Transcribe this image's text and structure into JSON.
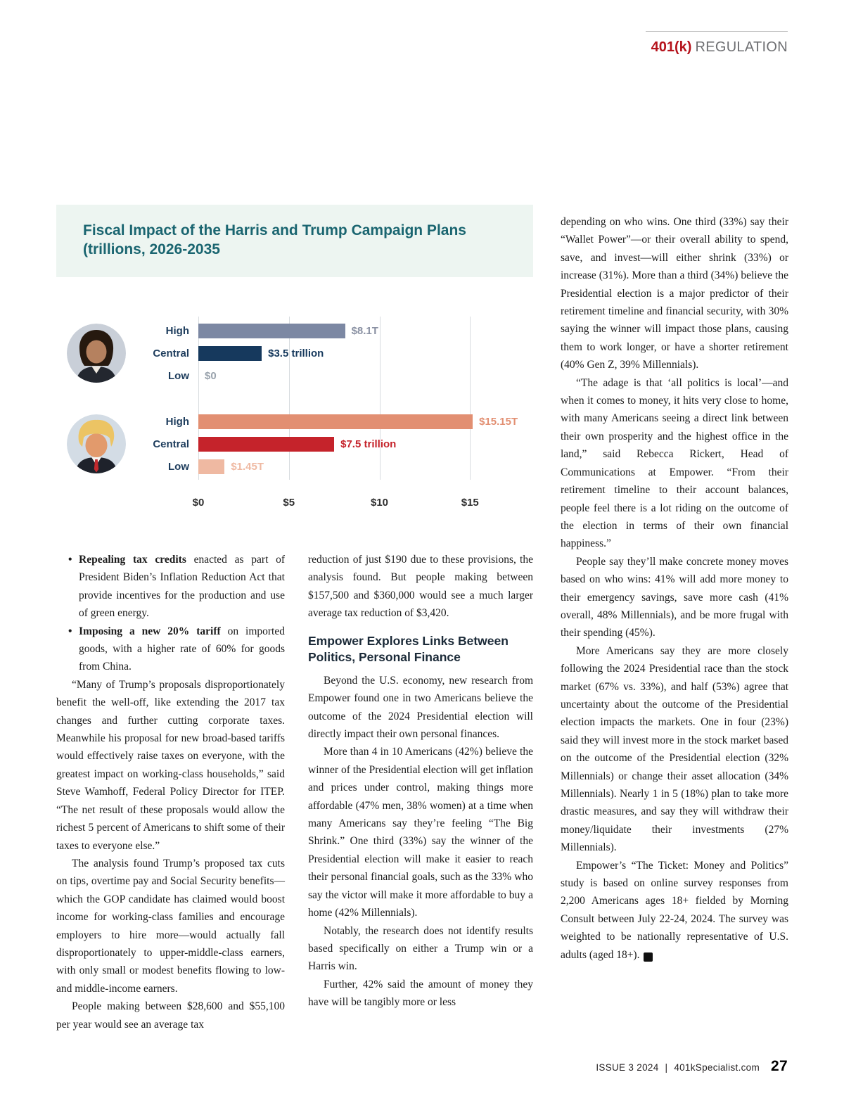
{
  "header": {
    "brand_bold": "401(k)",
    "brand_light": "REGULATION"
  },
  "chart": {
    "title_line1": "Fiscal Impact of the Harris and Trump Campaign Plans",
    "title_line2": "(trillions, 2026-2035"
  },
  "chart_data": {
    "type": "bar",
    "orientation": "horizontal",
    "title": "Fiscal Impact of the Harris and Trump Campaign Plans (trillions, 2026-2035",
    "unit": "trillions of US dollars",
    "xlim": [
      0,
      16
    ],
    "grid": true,
    "x_ticks": [
      {
        "value": 0,
        "label": "$0"
      },
      {
        "value": 5,
        "label": "$5"
      },
      {
        "value": 10,
        "label": "$10"
      },
      {
        "value": 15,
        "label": "$15"
      }
    ],
    "groups": [
      {
        "name": "Harris",
        "rows": [
          {
            "category": "High",
            "value": 8.1,
            "label": "$8.1T",
            "bar_color": "#7c88a3",
            "label_color": "#8a91a3"
          },
          {
            "category": "Central",
            "value": 3.5,
            "label": "$3.5 trillion",
            "bar_color": "#16395d",
            "label_color": "#16395d"
          },
          {
            "category": "Low",
            "value": 0,
            "label": "$0",
            "bar_color": "#9aa3ad",
            "label_color": "#9aa3ad"
          }
        ]
      },
      {
        "name": "Trump",
        "rows": [
          {
            "category": "High",
            "value": 15.15,
            "label": "$15.15T",
            "bar_color": "#e28f72",
            "label_color": "#e28f72"
          },
          {
            "category": "Central",
            "value": 7.5,
            "label": "$7.5 trillion",
            "bar_color": "#c5232b",
            "label_color": "#c5232b"
          },
          {
            "category": "Low",
            "value": 1.45,
            "label": "$1.45T",
            "bar_color": "#efb9a2",
            "label_color": "#efb9a2"
          }
        ]
      }
    ]
  },
  "columns": {
    "col1": {
      "bullets": [
        {
          "lead": "Repealing tax credits",
          "text": " enacted as part of President Biden’s Inflation Reduction Act that provide incentives for the production and use of green energy."
        },
        {
          "lead": "Imposing a new 20% tariff",
          "text": " on imported goods, with a higher rate of 60% for goods from China."
        }
      ],
      "paragraphs": [
        "“Many of Trump’s proposals disproportionately benefit the well-off, like extending the 2017 tax changes and further cutting corporate taxes. Meanwhile his proposal for new broad-based tariffs would effectively raise taxes on everyone, with the greatest impact on working-class households,” said Steve Wamhoff, Federal Policy Director for ITEP. “The net result of these proposals would allow the richest 5 percent of Americans to shift some of their taxes to everyone else.”",
        "The analysis found Trump’s proposed tax cuts on tips, overtime pay and Social Security benefits—which the GOP candidate has claimed would boost income for working-class families and encourage employers to hire more—would actually fall disproportionately to upper-middle-class earners, with only small or modest benefits flowing to low- and middle-income earners.",
        "People making between $28,600 and $55,100 per year would see an average tax"
      ]
    },
    "col2": {
      "lead_paragraphs": [
        "reduction of just $190 due to these provisions, the analysis found. But people making between $157,500 and $360,000 would see a much larger average tax reduction of $3,420."
      ],
      "heading": "Empower Explores Links Between Politics, Personal Finance",
      "paragraphs": [
        "Beyond the U.S. economy, new research from Empower found one in two Americans believe the outcome of the 2024 Presidential election will directly impact their own personal finances.",
        "More than 4 in 10 Americans (42%) believe the winner of the Presidential election will get inflation and prices under control, making things more affordable (47% men, 38% women) at a time when many Americans say they’re feeling “The Big Shrink.” One third (33%) say the winner of the Presidential election will make it easier to reach their personal financial goals, such as the 33% who say the victor will make it more affordable to buy a home (42% Millennials).",
        "Notably, the research does not identify results based specifically on either a Trump win or a Harris win.",
        "Further, 42% said the amount of money they have will be tangibly more or less"
      ]
    },
    "col3": {
      "paragraphs": [
        "depending on who wins. One third (33%) say their “Wallet Power”—or their overall ability to spend, save, and invest—will either shrink (33%) or increase (31%). More than a third (34%) believe the Presidential election is a major predictor of their retirement timeline and financial security, with 30% saying the winner will impact those plans, causing them to work longer, or have a shorter retirement (40% Gen Z, 39% Millennials).",
        "“The adage is that ‘all politics is local’—and when it comes to money, it hits very close to home, with many Americans seeing a direct link between their own prosperity and the highest office in the land,” said Rebecca Rickert, Head of Communications at Empower. “From their retirement timeline to their account balances, people feel there is a lot riding on the outcome of the election in terms of their own financial happiness.”",
        "People say they’ll make concrete money moves based on who wins: 41% will add more money to their emergency savings, save more cash (41% overall, 48% Millennials), and be more frugal with their spending (45%).",
        "More Americans say they are more closely following the 2024 Presidential race than the stock market (67% vs. 33%), and half (53%) agree that uncertainty about the outcome of the Presidential election impacts the markets. One in four (23%) said they will invest more in the stock market based on the outcome of the Presidential election (32% Millennials) or change their asset allocation (34% Millennials). Nearly 1 in 5 (18%) plan to take more drastic measures, and say they will withdraw their money/liquidate their investments (27% Millennials).",
        "Empower’s “The Ticket: Money and Politics” study is based on online survey responses from 2,200 Americans ages 18+ fielded by Morning Consult between July 22-24, 2024. The survey was weighted to be nationally representative of U.S. adults (aged 18+)."
      ]
    }
  },
  "article": {
    "end_mark": "K"
  },
  "footer": {
    "issue": "ISSUE 3 2024",
    "separator": "|",
    "site": "401kSpecialist.com",
    "page_number": "27"
  }
}
